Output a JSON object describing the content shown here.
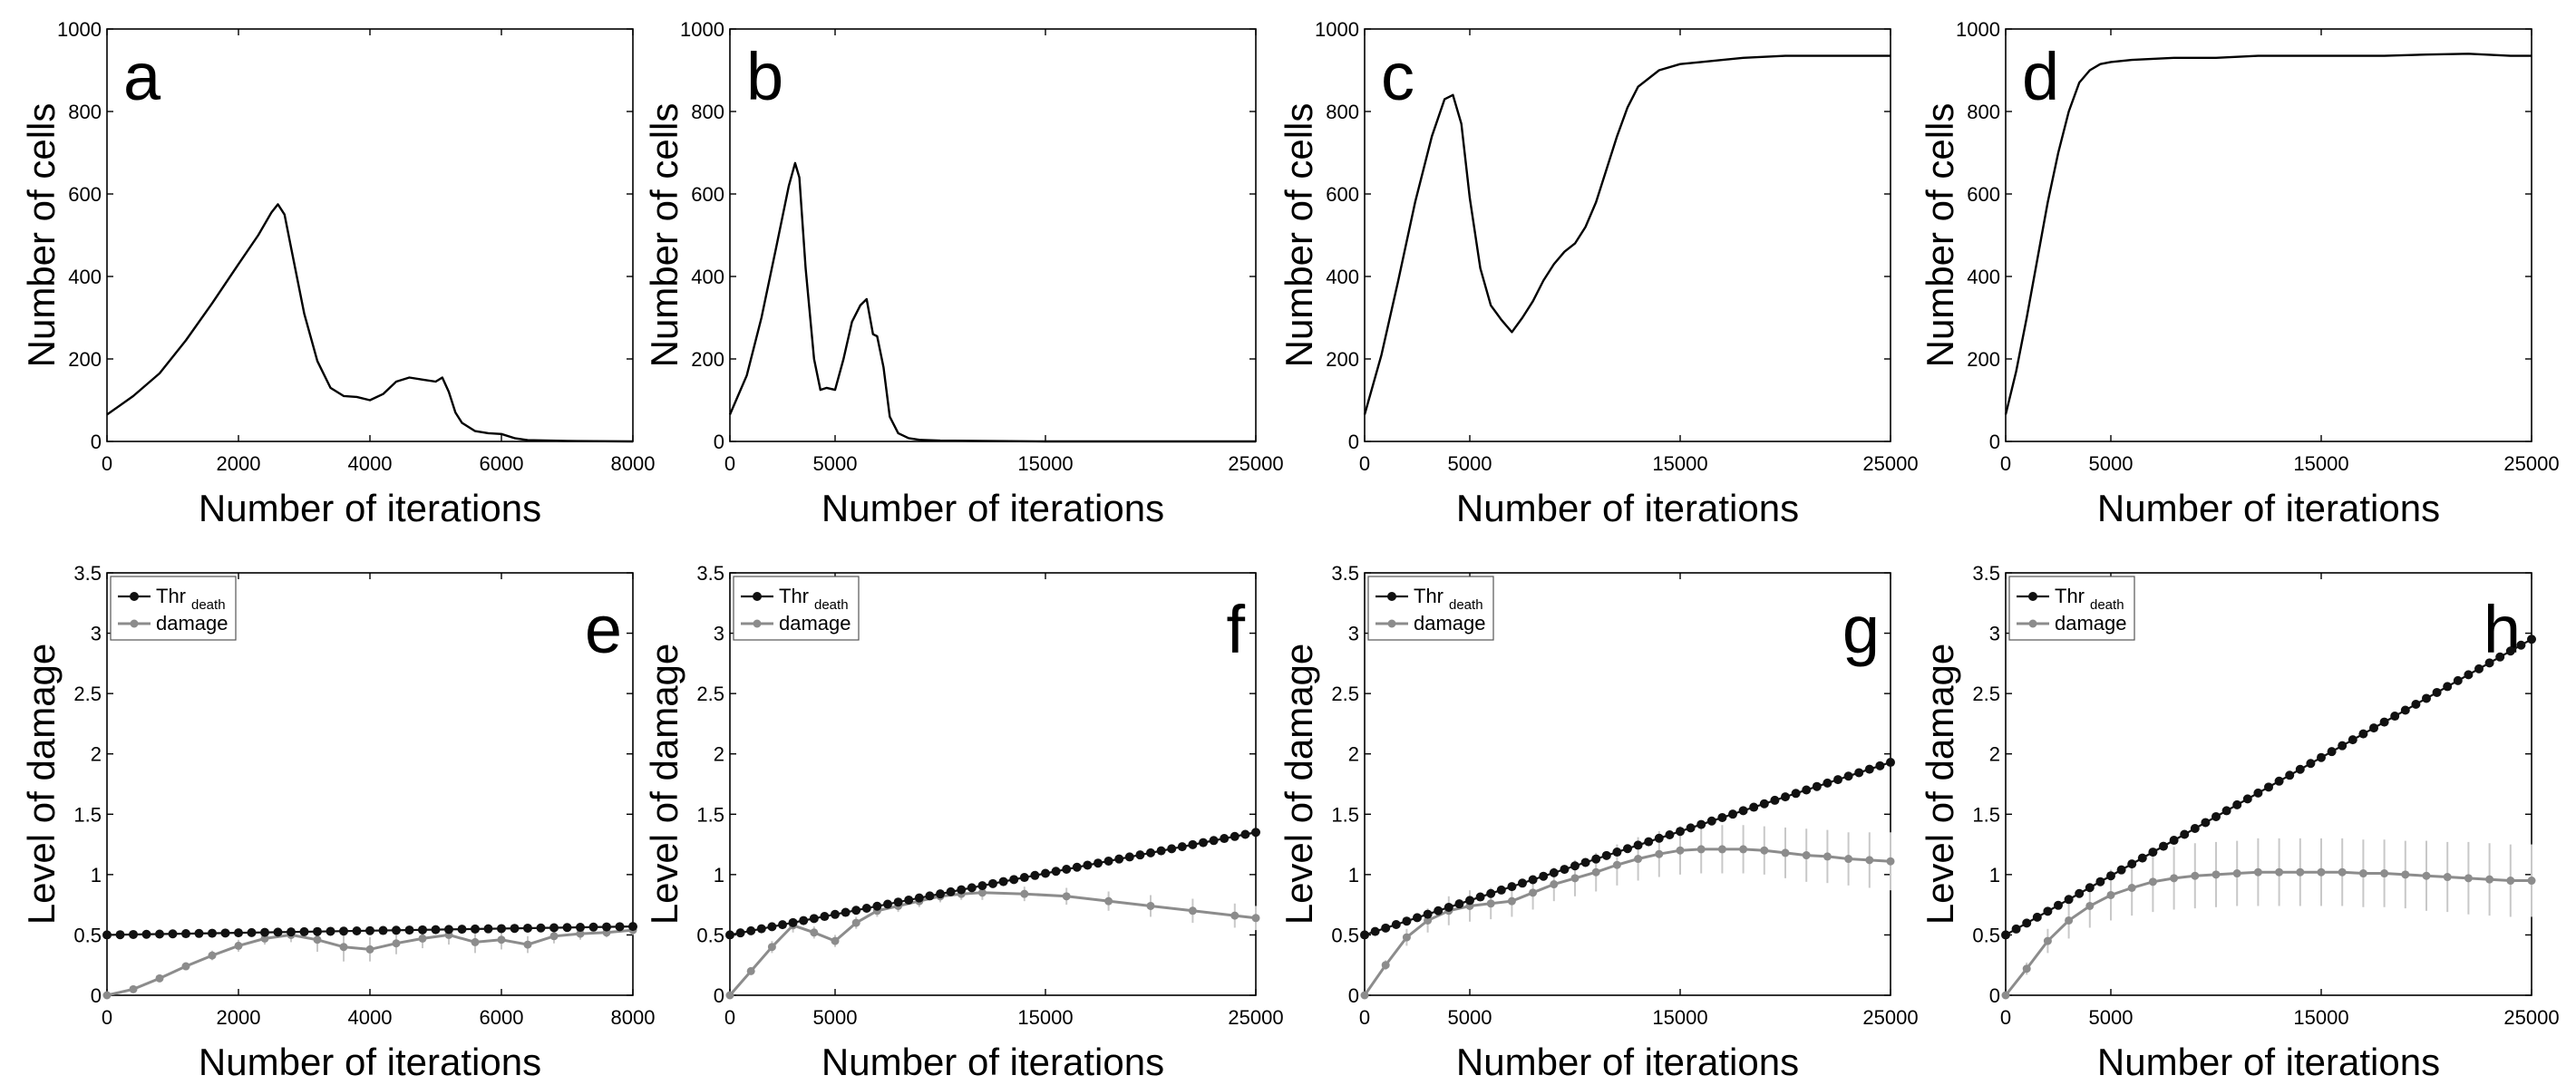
{
  "figure": {
    "colors": {
      "axis": "#000000",
      "threshold": "#111111",
      "damage": "#8c8c8c",
      "errorbar": "#c8c8c8",
      "line": "#000000"
    }
  },
  "chart_data": [
    {
      "panel": "a",
      "type": "line",
      "xlabel": "Number of iterations",
      "ylabel": "Number of cells",
      "xlim": [
        0,
        8000
      ],
      "ylim": [
        0,
        1000
      ],
      "xticks": [
        "0",
        "2000",
        "4000",
        "6000",
        "8000"
      ],
      "xtick_values": [
        0,
        2000,
        4000,
        6000,
        8000
      ],
      "yticks": [
        "0",
        "200",
        "400",
        "600",
        "800",
        "1000"
      ],
      "ytick_values": [
        0,
        200,
        400,
        600,
        800,
        1000
      ],
      "series": [
        {
          "name": "cells",
          "x": [
            0,
            400,
            800,
            1200,
            1600,
            2000,
            2300,
            2500,
            2600,
            2700,
            2800,
            3000,
            3200,
            3400,
            3600,
            3800,
            4000,
            4200,
            4400,
            4600,
            4800,
            5000,
            5100,
            5200,
            5300,
            5400,
            5600,
            5800,
            6000,
            6200,
            6400,
            7000,
            8000
          ],
          "y": [
            65,
            110,
            165,
            245,
            335,
            430,
            500,
            555,
            575,
            550,
            470,
            310,
            195,
            130,
            110,
            108,
            100,
            115,
            145,
            155,
            150,
            145,
            155,
            120,
            70,
            45,
            25,
            20,
            18,
            8,
            3,
            1,
            0
          ]
        }
      ]
    },
    {
      "panel": "b",
      "type": "line",
      "xlabel": "Number of iterations",
      "ylabel": "Number of cells",
      "xlim": [
        0,
        25000
      ],
      "ylim": [
        0,
        1000
      ],
      "xticks": [
        "0",
        "5000",
        "15000",
        "25000"
      ],
      "xtick_values": [
        0,
        5000,
        15000,
        25000
      ],
      "yticks": [
        "0",
        "200",
        "400",
        "600",
        "800",
        "1000"
      ],
      "ytick_values": [
        0,
        200,
        400,
        600,
        800,
        1000
      ],
      "series": [
        {
          "name": "cells",
          "x": [
            0,
            800,
            1500,
            2200,
            2800,
            3100,
            3300,
            3600,
            4000,
            4300,
            4600,
            5000,
            5400,
            5800,
            6200,
            6500,
            6800,
            7000,
            7300,
            7600,
            8000,
            8500,
            9000,
            10000,
            12000,
            15000,
            20000,
            25000
          ],
          "y": [
            65,
            160,
            300,
            470,
            620,
            675,
            640,
            420,
            200,
            125,
            130,
            125,
            200,
            290,
            330,
            345,
            260,
            255,
            180,
            60,
            20,
            8,
            4,
            2,
            1,
            0,
            0,
            0
          ]
        }
      ]
    },
    {
      "panel": "c",
      "type": "line",
      "xlabel": "Number of iterations",
      "ylabel": "Number of cells",
      "xlim": [
        0,
        25000
      ],
      "ylim": [
        0,
        1000
      ],
      "xticks": [
        "0",
        "5000",
        "15000",
        "25000"
      ],
      "xtick_values": [
        0,
        5000,
        15000,
        25000
      ],
      "yticks": [
        "0",
        "200",
        "400",
        "600",
        "800",
        "1000"
      ],
      "ytick_values": [
        0,
        200,
        400,
        600,
        800,
        1000
      ],
      "series": [
        {
          "name": "cells",
          "x": [
            0,
            800,
            1600,
            2400,
            3200,
            3800,
            4200,
            4600,
            5000,
            5500,
            6000,
            6500,
            7000,
            7500,
            8000,
            8500,
            9000,
            9500,
            10000,
            10500,
            11000,
            11500,
            12000,
            12500,
            13000,
            14000,
            15000,
            16000,
            18000,
            20000,
            22000,
            24000,
            25000
          ],
          "y": [
            65,
            210,
            390,
            580,
            740,
            830,
            840,
            770,
            590,
            420,
            330,
            295,
            265,
            300,
            340,
            390,
            430,
            460,
            480,
            520,
            580,
            660,
            740,
            810,
            860,
            900,
            915,
            920,
            930,
            935,
            935,
            935,
            935
          ]
        }
      ]
    },
    {
      "panel": "d",
      "type": "line",
      "xlabel": "Number of iterations",
      "ylabel": "Number of cells",
      "xlim": [
        0,
        25000
      ],
      "ylim": [
        0,
        1000
      ],
      "xticks": [
        "0",
        "5000",
        "15000",
        "25000"
      ],
      "xtick_values": [
        0,
        5000,
        15000,
        25000
      ],
      "yticks": [
        "0",
        "200",
        "400",
        "600",
        "800",
        "1000"
      ],
      "ytick_values": [
        0,
        200,
        400,
        600,
        800,
        1000
      ],
      "series": [
        {
          "name": "cells",
          "x": [
            0,
            500,
            1000,
            1500,
            2000,
            2500,
            3000,
            3500,
            4000,
            4500,
            5000,
            6000,
            8000,
            10000,
            12000,
            14000,
            16000,
            18000,
            20000,
            22000,
            24000,
            25000
          ],
          "y": [
            65,
            170,
            300,
            440,
            580,
            700,
            800,
            870,
            900,
            915,
            920,
            925,
            930,
            930,
            935,
            935,
            935,
            935,
            938,
            940,
            935,
            935
          ]
        }
      ]
    },
    {
      "panel": "e",
      "type": "line",
      "xlabel": "Number of iterations",
      "ylabel": "Level of damage",
      "xlim": [
        0,
        8000
      ],
      "ylim": [
        0,
        3.5
      ],
      "xticks": [
        "0",
        "2000",
        "4000",
        "6000",
        "8000"
      ],
      "xtick_values": [
        0,
        2000,
        4000,
        6000,
        8000
      ],
      "yticks": [
        "0",
        "0.5",
        "1",
        "1.5",
        "2",
        "2.5",
        "3",
        "3.5"
      ],
      "ytick_values": [
        0,
        0.5,
        1,
        1.5,
        2,
        2.5,
        3,
        3.5
      ],
      "legend": [
        "Thr",
        "death",
        "damage"
      ],
      "series": [
        {
          "name": "Thr_death",
          "x_end": 8000,
          "n": 41,
          "y_start": 0.5,
          "y_end": 0.57
        },
        {
          "name": "damage",
          "x": [
            0,
            400,
            800,
            1200,
            1600,
            2000,
            2400,
            2800,
            3200,
            3600,
            4000,
            4400,
            4800,
            5200,
            5600,
            6000,
            6400,
            6800,
            7200,
            7600,
            8000
          ],
          "y": [
            0.0,
            0.05,
            0.14,
            0.24,
            0.33,
            0.41,
            0.47,
            0.5,
            0.46,
            0.4,
            0.38,
            0.43,
            0.47,
            0.5,
            0.44,
            0.46,
            0.42,
            0.49,
            0.51,
            0.52,
            0.54
          ],
          "err": [
            0.0,
            0.02,
            0.03,
            0.03,
            0.04,
            0.05,
            0.05,
            0.06,
            0.1,
            0.12,
            0.1,
            0.09,
            0.08,
            0.08,
            0.09,
            0.08,
            0.07,
            0.06,
            0.05,
            0.04,
            0.04
          ]
        }
      ]
    },
    {
      "panel": "f",
      "type": "line",
      "xlabel": "Number of iterations",
      "ylabel": "Level of damage",
      "xlim": [
        0,
        25000
      ],
      "ylim": [
        0,
        3.5
      ],
      "xticks": [
        "0",
        "5000",
        "15000",
        "25000"
      ],
      "xtick_values": [
        0,
        5000,
        15000,
        25000
      ],
      "yticks": [
        "0",
        "0.5",
        "1",
        "1.5",
        "2",
        "2.5",
        "3",
        "3.5"
      ],
      "ytick_values": [
        0,
        0.5,
        1,
        1.5,
        2,
        2.5,
        3,
        3.5
      ],
      "legend": [
        "Thr",
        "death",
        "damage"
      ],
      "series": [
        {
          "name": "Thr_death",
          "x_end": 25000,
          "n": 51,
          "y_start": 0.5,
          "y_end": 1.35
        },
        {
          "name": "damage",
          "x": [
            0,
            1000,
            2000,
            3000,
            4000,
            5000,
            6000,
            7000,
            8000,
            9000,
            10000,
            11000,
            12000,
            14000,
            16000,
            18000,
            20000,
            22000,
            24000,
            25000
          ],
          "y": [
            0.0,
            0.2,
            0.4,
            0.58,
            0.52,
            0.45,
            0.6,
            0.7,
            0.74,
            0.78,
            0.82,
            0.84,
            0.85,
            0.84,
            0.82,
            0.78,
            0.74,
            0.7,
            0.66,
            0.64
          ],
          "err": [
            0.0,
            0.03,
            0.05,
            0.06,
            0.05,
            0.05,
            0.05,
            0.05,
            0.05,
            0.05,
            0.05,
            0.05,
            0.06,
            0.06,
            0.07,
            0.08,
            0.09,
            0.1,
            0.1,
            0.1
          ]
        }
      ]
    },
    {
      "panel": "g",
      "type": "line",
      "xlabel": "Number of iterations",
      "ylabel": "Level of damage",
      "xlim": [
        0,
        25000
      ],
      "ylim": [
        0,
        3.5
      ],
      "xticks": [
        "0",
        "5000",
        "15000",
        "25000"
      ],
      "xtick_values": [
        0,
        5000,
        15000,
        25000
      ],
      "yticks": [
        "0",
        "0.5",
        "1",
        "1.5",
        "2",
        "2.5",
        "3",
        "3.5"
      ],
      "ytick_values": [
        0,
        0.5,
        1,
        1.5,
        2,
        2.5,
        3,
        3.5
      ],
      "legend": [
        "Thr",
        "death",
        "damage"
      ],
      "series": [
        {
          "name": "Thr_death",
          "x_end": 25000,
          "n": 51,
          "y_start": 0.5,
          "y_end": 1.93
        },
        {
          "name": "damage",
          "x": [
            0,
            1000,
            2000,
            3000,
            4000,
            5000,
            6000,
            7000,
            8000,
            9000,
            10000,
            11000,
            12000,
            13000,
            14000,
            15000,
            16000,
            17000,
            18000,
            19000,
            20000,
            21000,
            22000,
            23000,
            24000,
            25000
          ],
          "y": [
            0.0,
            0.25,
            0.48,
            0.62,
            0.7,
            0.74,
            0.76,
            0.78,
            0.85,
            0.92,
            0.97,
            1.02,
            1.08,
            1.13,
            1.17,
            1.2,
            1.21,
            1.21,
            1.21,
            1.2,
            1.18,
            1.16,
            1.15,
            1.13,
            1.12,
            1.11
          ],
          "err": [
            0.0,
            0.04,
            0.07,
            0.1,
            0.12,
            0.13,
            0.13,
            0.13,
            0.14,
            0.14,
            0.15,
            0.16,
            0.17,
            0.18,
            0.19,
            0.2,
            0.2,
            0.2,
            0.2,
            0.2,
            0.21,
            0.22,
            0.22,
            0.22,
            0.23,
            0.24
          ]
        }
      ]
    },
    {
      "panel": "h",
      "type": "line",
      "xlabel": "Number of iterations",
      "ylabel": "Level of damage",
      "xlim": [
        0,
        25000
      ],
      "ylim": [
        0,
        3.5
      ],
      "xticks": [
        "0",
        "5000",
        "15000",
        "25000"
      ],
      "xtick_values": [
        0,
        5000,
        15000,
        25000
      ],
      "yticks": [
        "0",
        "0.5",
        "1",
        "1.5",
        "2",
        "2.5",
        "3",
        "3.5"
      ],
      "ytick_values": [
        0,
        0.5,
        1,
        1.5,
        2,
        2.5,
        3,
        3.5
      ],
      "legend": [
        "Thr",
        "death",
        "damage"
      ],
      "series": [
        {
          "name": "Thr_death",
          "x_end": 25000,
          "n": 51,
          "y_start": 0.5,
          "y_end": 2.95
        },
        {
          "name": "damage",
          "x": [
            0,
            1000,
            2000,
            3000,
            4000,
            5000,
            6000,
            7000,
            8000,
            9000,
            10000,
            11000,
            12000,
            13000,
            14000,
            15000,
            16000,
            17000,
            18000,
            19000,
            20000,
            21000,
            22000,
            23000,
            24000,
            25000
          ],
          "y": [
            0.0,
            0.22,
            0.45,
            0.62,
            0.74,
            0.83,
            0.89,
            0.94,
            0.97,
            0.99,
            1.0,
            1.01,
            1.02,
            1.02,
            1.02,
            1.02,
            1.02,
            1.01,
            1.01,
            1.0,
            0.99,
            0.98,
            0.97,
            0.96,
            0.95,
            0.95
          ],
          "err": [
            0.0,
            0.05,
            0.1,
            0.15,
            0.18,
            0.21,
            0.23,
            0.25,
            0.26,
            0.27,
            0.27,
            0.27,
            0.28,
            0.28,
            0.28,
            0.28,
            0.28,
            0.28,
            0.28,
            0.28,
            0.29,
            0.29,
            0.3,
            0.3,
            0.3,
            0.3
          ]
        }
      ]
    }
  ]
}
